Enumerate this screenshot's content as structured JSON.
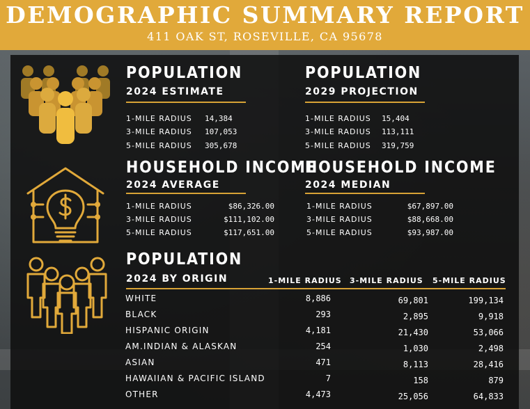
{
  "header": {
    "title": "DEMOGRAPHIC SUMMARY REPORT",
    "address": "411 OAK ST, ROSEVILLE, CA 95678"
  },
  "colors": {
    "gold": "#e1a93a",
    "icon_gold": "#d8a336",
    "icon_dark": "#a07a26",
    "overlay": "#0e0e0e"
  },
  "icons": [
    "people-group-icon",
    "house-lightbulb-dollar-icon",
    "people-outline-icon"
  ],
  "pop2024": {
    "title": "POPULATION",
    "subtitle": "2024 ESTIMATE",
    "rows": [
      {
        "label": "1-MILE RADIUS",
        "value": "14,384"
      },
      {
        "label": "3-MILE RADIUS",
        "value": "107,053"
      },
      {
        "label": "5-MILE RADIUS",
        "value": "305,678"
      }
    ]
  },
  "pop2029": {
    "title": "POPULATION",
    "subtitle": "2029 PROJECTION",
    "rows": [
      {
        "label": "1-MILE RADIUS",
        "value": "15,404"
      },
      {
        "label": "3-MILE RADIUS",
        "value": "113,111"
      },
      {
        "label": "5-MILE RADIUS",
        "value": "319,759"
      }
    ]
  },
  "income_avg": {
    "title": "HOUSEHOLD INCOME",
    "subtitle": "2024 AVERAGE",
    "rows": [
      {
        "label": "1-MILE RADIUS",
        "value": "$86,326.00"
      },
      {
        "label": "3-MILE RADIUS",
        "value": "$111,102.00"
      },
      {
        "label": "5-MILE RADIUS",
        "value": "$117,651.00"
      }
    ]
  },
  "income_median": {
    "title": "HOUSEHOLD INCOME",
    "subtitle": "2024 MEDIAN",
    "rows": [
      {
        "label": "1-MILE RADIUS",
        "value": "$67,897.00"
      },
      {
        "label": "3-MILE RADIUS",
        "value": "$88,668.00"
      },
      {
        "label": "5-MILE RADIUS",
        "value": "$93,987.00"
      }
    ]
  },
  "origin": {
    "title": "POPULATION",
    "subtitle": "2024 BY ORIGIN",
    "columns": [
      "1-MILE RADIUS",
      "3-MILE RADIUS",
      "5-MILE RADIUS"
    ],
    "rows": [
      {
        "label": "WHITE",
        "v1": "8,886",
        "v3": "69,801",
        "v5": "199,134"
      },
      {
        "label": "BLACK",
        "v1": "293",
        "v3": "2,895",
        "v5": "9,918"
      },
      {
        "label": "HISPANIC ORIGIN",
        "v1": "4,181",
        "v3": "21,430",
        "v5": "53,066"
      },
      {
        "label": "AM.INDIAN & ALASKAN",
        "v1": "254",
        "v3": "1,030",
        "v5": "2,498"
      },
      {
        "label": "ASIAN",
        "v1": "471",
        "v3": "8,113",
        "v5": "28,416"
      },
      {
        "label": "HAWAIIAN & PACIFIC ISLAND",
        "v1": "7",
        "v3": "158",
        "v5": "879"
      },
      {
        "label": "OTHER",
        "v1": "4,473",
        "v3": "25,056",
        "v5": "64,833"
      }
    ]
  }
}
